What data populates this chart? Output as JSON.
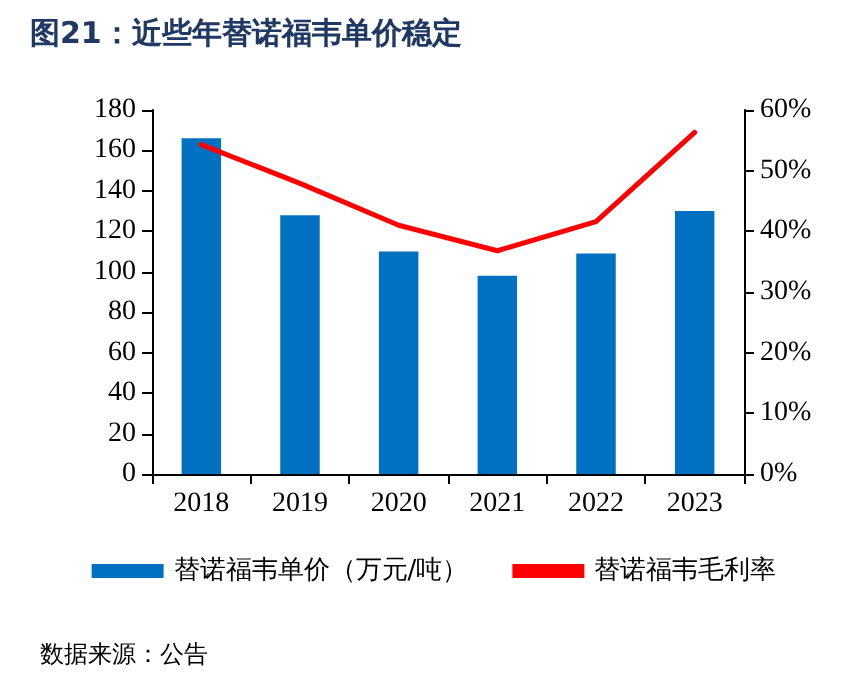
{
  "chart_data": {
    "type": "bar",
    "title": "图21：近些年替诺福韦单价稳定",
    "categories": [
      "2018",
      "2019",
      "2020",
      "2021",
      "2022",
      "2023"
    ],
    "series": [
      {
        "name": "替诺福韦单价（万元/吨）",
        "color": "#0070c0",
        "values": [
          166,
          128,
          110,
          98,
          109,
          130
        ]
      },
      {
        "name": "替诺福韦毛利率",
        "type": "line",
        "axis": "y2",
        "color": "#ff0000",
        "marker": "none",
        "line_style": "solid",
        "values": [
          54.3,
          47.9,
          41,
          36.8,
          41.6,
          56.3
        ]
      }
    ],
    "ylim": [
      0,
      180
    ],
    "yticks": [
      0,
      20,
      40,
      60,
      80,
      100,
      120,
      140,
      160,
      180
    ],
    "y2lim": [
      0,
      60
    ],
    "y2ticks": [
      {
        "value": 0,
        "label": "0%"
      },
      {
        "value": 10,
        "label": "10%"
      },
      {
        "value": 20,
        "label": "20%"
      },
      {
        "value": 30,
        "label": "30%"
      },
      {
        "value": 40,
        "label": "40%"
      },
      {
        "value": 50,
        "label": "50%"
      },
      {
        "value": 60,
        "label": "60%"
      }
    ],
    "grid": false,
    "legend": "bottom",
    "annotations": [
      "数据来源：公告"
    ]
  }
}
